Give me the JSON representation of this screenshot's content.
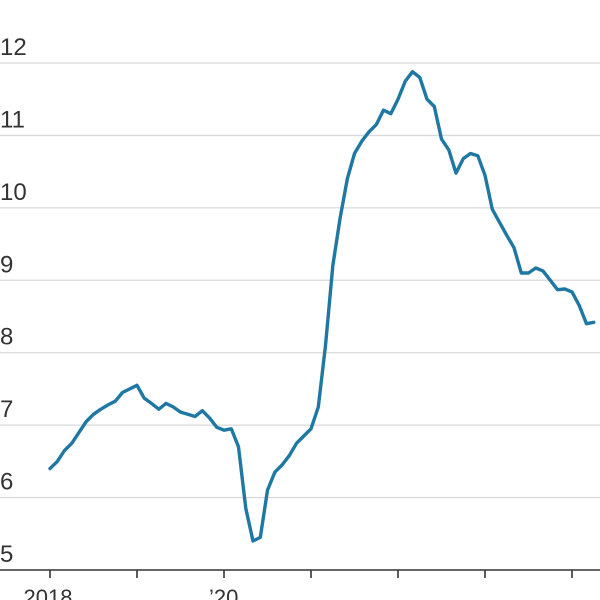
{
  "chart_data": {
    "type": "line",
    "title": "",
    "xlabel": "",
    "ylabel": "",
    "ylim": [
      5,
      12
    ],
    "yticks": [
      5,
      6,
      7,
      8,
      9,
      10,
      11,
      12
    ],
    "ytick_labels": [
      "5",
      "6",
      "7",
      "8",
      "9",
      "10",
      "11",
      "12"
    ],
    "xlim": [
      0,
      75
    ],
    "xtick_positions": [
      0,
      12,
      24,
      36,
      48,
      60,
      72
    ],
    "xtick_labels": [
      {
        "x": 0,
        "label": "2018"
      },
      {
        "x": 24,
        "label": "’20"
      }
    ],
    "grid": true,
    "line_color": "#1f78a4",
    "series": [
      {
        "x": [
          0,
          1,
          2,
          3,
          4,
          5,
          6,
          7,
          8,
          9,
          10,
          11,
          12,
          13,
          14,
          15,
          16,
          17,
          18,
          19,
          20,
          21,
          22,
          23,
          24,
          25,
          26,
          27,
          28,
          29,
          30,
          31,
          32,
          33,
          34,
          35,
          36,
          37,
          38,
          39,
          40,
          41,
          42,
          43,
          44,
          45,
          46,
          47,
          48,
          49,
          50,
          51,
          52,
          53,
          54,
          55,
          56,
          57,
          58,
          59,
          60,
          61,
          62,
          63,
          64,
          65,
          66,
          67,
          68,
          69,
          70,
          71,
          72,
          73,
          74,
          75
        ],
        "values": [
          6.4,
          6.5,
          6.65,
          6.75,
          6.9,
          7.05,
          7.15,
          7.22,
          7.28,
          7.33,
          7.45,
          7.5,
          7.55,
          7.37,
          7.3,
          7.22,
          7.3,
          7.25,
          7.18,
          7.15,
          7.12,
          7.2,
          7.1,
          6.97,
          6.93,
          6.95,
          6.7,
          5.85,
          5.4,
          5.45,
          6.1,
          6.35,
          6.45,
          6.58,
          6.75,
          6.85,
          6.95,
          7.25,
          8.1,
          9.2,
          9.85,
          10.4,
          10.75,
          10.92,
          11.05,
          11.15,
          11.35,
          11.3,
          11.5,
          11.75,
          11.88,
          11.8,
          11.5,
          11.4,
          10.95,
          10.8,
          10.48,
          10.68,
          10.75,
          10.72,
          10.45,
          9.98,
          9.8,
          9.62,
          9.45,
          9.1,
          9.1,
          9.17,
          9.13,
          9.0,
          8.87,
          8.88,
          8.84,
          8.65,
          8.4,
          8.42
        ]
      }
    ]
  }
}
